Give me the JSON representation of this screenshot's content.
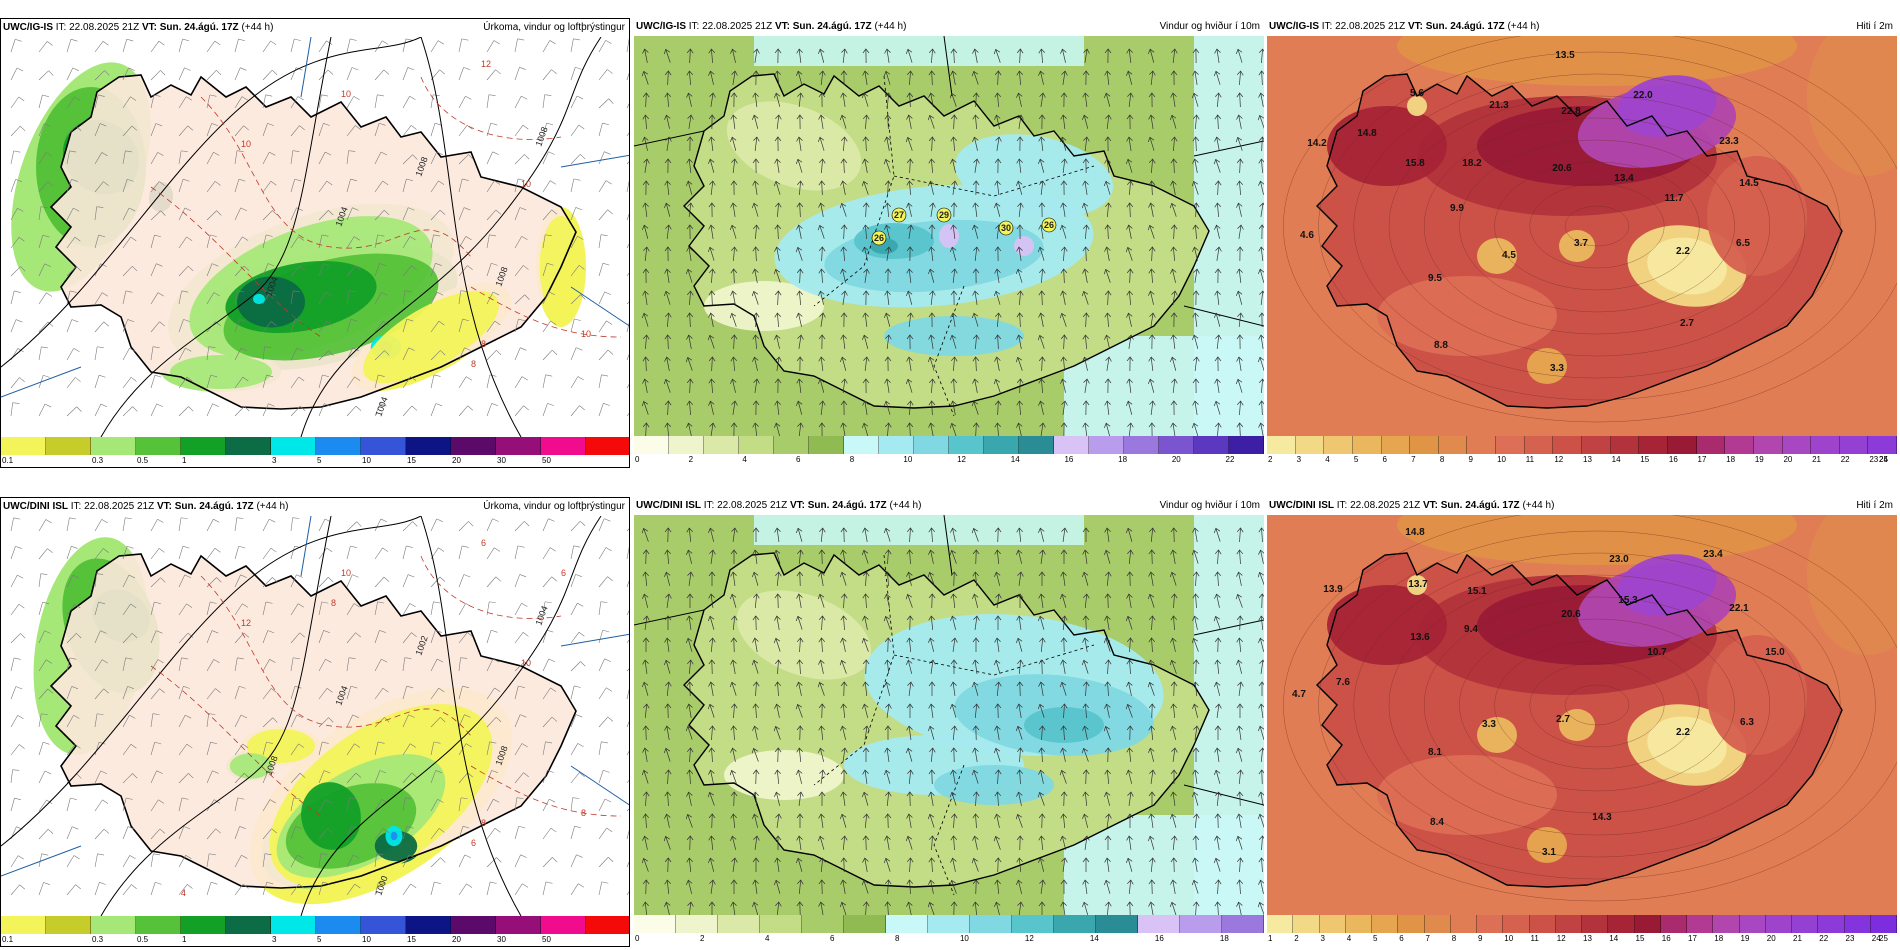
{
  "panels": [
    {
      "row": 0,
      "col": 0,
      "kind": "precip",
      "model": "UWC/IG-IS",
      "it_label": "IT:",
      "it_value": "22.08.2025 21Z",
      "vt_label": "VT:",
      "vt_value": "Sun. 24.ágú. 17Z",
      "lead": "(+44 h)",
      "title": "Úrkoma, vindur og loftþrýstingur",
      "isobar_labels": [
        "1008",
        "1004",
        "1004",
        "1008",
        "1004",
        "1008"
      ],
      "temp_labels": [
        "12",
        "10",
        "10",
        "10",
        "8",
        "10",
        "8"
      ],
      "colorbar": {
        "colors": [
          "#f3f35a",
          "#c6cc2a",
          "#a6e878",
          "#56c23a",
          "#13a027",
          "#0b6c45",
          "#00e7e7",
          "#1b8bf0",
          "#3654d8",
          "#0c1486",
          "#5c0a6a",
          "#960f78",
          "#f00c8c",
          "#f50a0a"
        ],
        "ticks": [
          "0.1",
          "0.3",
          "0.5",
          "1",
          "3",
          "5",
          "10",
          "15",
          "20",
          "30",
          "50"
        ]
      }
    },
    {
      "row": 0,
      "col": 1,
      "kind": "wind",
      "model": "UWC/IG-IS",
      "it_label": "IT:",
      "it_value": "22.08.2025 21Z",
      "vt_label": "VT:",
      "vt_value": "Sun. 24.ágú. 17Z",
      "lead": "(+44 h)",
      "title": "Vindur og hviður í 10m",
      "gust_labels": [
        "27",
        "29",
        "30",
        "26",
        "26"
      ],
      "colorbar": {
        "colors": [
          "#fbfde8",
          "#eef4cb",
          "#dbe9a8",
          "#c3dc86",
          "#a9cc6a",
          "#8fbb52",
          "#c9f8f8",
          "#a5eaf0",
          "#7fd8e2",
          "#58c4cc",
          "#3aa6ae",
          "#2a8c94",
          "#d8c2f6",
          "#b99ceb",
          "#9a78de",
          "#7b55d0",
          "#5b38bf",
          "#3d1fa6"
        ],
        "ticks": [
          "0",
          "2",
          "4",
          "6",
          "8",
          "10",
          "12",
          "14",
          "16",
          "18",
          "20",
          "22"
        ]
      }
    },
    {
      "row": 0,
      "col": 2,
      "kind": "temp",
      "model": "UWC/IG-IS",
      "it_label": "IT:",
      "it_value": "22.08.2025 21Z",
      "vt_label": "VT:",
      "vt_value": "Sun. 24.ágú. 17Z",
      "lead": "(+44 h)",
      "title": "Hiti í 2m",
      "temp_values": [
        "13.5",
        "5.6",
        "14.2",
        "14.8",
        "21.3",
        "22.8",
        "22.0",
        "23.3",
        "14.5",
        "15.8",
        "18.2",
        "20.6",
        "13.4",
        "11.7",
        "9.9",
        "4.6",
        "4.5",
        "3.7",
        "2.2",
        "6.5",
        "9.5",
        "2.7",
        "8.8",
        "3.3"
      ],
      "colorbar": {
        "colors": [
          "#f6eaa0",
          "#f2d985",
          "#eec770",
          "#eab75e",
          "#e6a650",
          "#e09446",
          "#e08a4e",
          "#e07d55",
          "#dc6f55",
          "#d5614f",
          "#cc5248",
          "#c14242",
          "#b2333c",
          "#a62436",
          "#981a35",
          "#aa2a6e",
          "#b23a92",
          "#b046ae",
          "#a748c2",
          "#9e44cc",
          "#9440d2",
          "#8c3ad8"
        ],
        "ticks": [
          "2",
          "3",
          "4",
          "5",
          "6",
          "7",
          "8",
          "9",
          "10",
          "11",
          "12",
          "13",
          "14",
          "15",
          "16",
          "17",
          "18",
          "19",
          "20",
          "21",
          "22",
          "23",
          "24",
          "25"
        ]
      }
    },
    {
      "row": 1,
      "col": 0,
      "kind": "precip",
      "model": "UWC/DINI ISL",
      "it_label": "IT:",
      "it_value": "22.08.2025 21Z",
      "vt_label": "VT:",
      "vt_value": "Sun. 24.ágú. 17Z",
      "lead": "(+44 h)",
      "title": "Úrkoma, vindur og loftþrýstingur",
      "isobar_labels": [
        "1002",
        "1004",
        "1008",
        "1008",
        "1000",
        "1004"
      ],
      "temp_labels": [
        "6",
        "12",
        "10",
        "10",
        "8",
        "8",
        "6",
        "8",
        "6",
        "4"
      ],
      "colorbar": {
        "colors": [
          "#f3f35a",
          "#c6cc2a",
          "#a6e878",
          "#56c23a",
          "#13a027",
          "#0b6c45",
          "#00e7e7",
          "#1b8bf0",
          "#3654d8",
          "#0c1486",
          "#5c0a6a",
          "#960f78",
          "#f00c8c",
          "#f50a0a"
        ],
        "ticks": [
          "0.1",
          "0.3",
          "0.5",
          "1",
          "3",
          "5",
          "10",
          "15",
          "20",
          "30",
          "50"
        ]
      }
    },
    {
      "row": 1,
      "col": 1,
      "kind": "wind",
      "model": "UWC/DINI ISL",
      "it_label": "IT:",
      "it_value": "22.08.2025 21Z",
      "vt_label": "VT:",
      "vt_value": "Sun. 24.ágú. 17Z",
      "lead": "(+44 h)",
      "title": "Vindur og hviður í 10m",
      "gust_labels": [],
      "colorbar": {
        "colors": [
          "#fbfde8",
          "#eef4cb",
          "#dbe9a8",
          "#c3dc86",
          "#a9cc6a",
          "#8fbb52",
          "#c9f8f8",
          "#a5eaf0",
          "#7fd8e2",
          "#58c4cc",
          "#3aa6ae",
          "#2a8c94",
          "#d8c2f6",
          "#b99ceb",
          "#9a78de"
        ],
        "ticks": [
          "0",
          "2",
          "4",
          "6",
          "8",
          "10",
          "12",
          "14",
          "16",
          "18"
        ]
      }
    },
    {
      "row": 1,
      "col": 2,
      "kind": "temp",
      "model": "UWC/DINI ISL",
      "it_label": "IT:",
      "it_value": "22.08.2025 21Z",
      "vt_label": "VT:",
      "vt_value": "Sun. 24.ágú. 17Z",
      "lead": "(+44 h)",
      "title": "Hiti í 2m",
      "temp_values": [
        "14.8",
        "23.0",
        "23.4",
        "13.9",
        "13.7",
        "15.1",
        "20.6",
        "15.3",
        "22.1",
        "13.6",
        "9.4",
        "10.7",
        "15.0",
        "4.7",
        "7.6",
        "3.3",
        "2.7",
        "2.2",
        "6.3",
        "8.1",
        "8.4",
        "14.3",
        "3.1"
      ],
      "colorbar": {
        "colors": [
          "#f6eaa0",
          "#f2d985",
          "#eec770",
          "#eab75e",
          "#e6a650",
          "#e09446",
          "#e08a4e",
          "#e07d55",
          "#dc6f55",
          "#d5614f",
          "#cc5248",
          "#c14242",
          "#b2333c",
          "#a62436",
          "#981a35",
          "#aa2a6e",
          "#b23a92",
          "#b046ae",
          "#a748c2",
          "#9e44cc",
          "#9440d2",
          "#8c3ad8",
          "#8434dc",
          "#7c2ede"
        ],
        "ticks": [
          "1",
          "2",
          "3",
          "4",
          "5",
          "6",
          "7",
          "8",
          "9",
          "10",
          "11",
          "12",
          "13",
          "14",
          "15",
          "16",
          "17",
          "18",
          "19",
          "20",
          "21",
          "22",
          "23",
          "24",
          "25"
        ]
      }
    }
  ]
}
